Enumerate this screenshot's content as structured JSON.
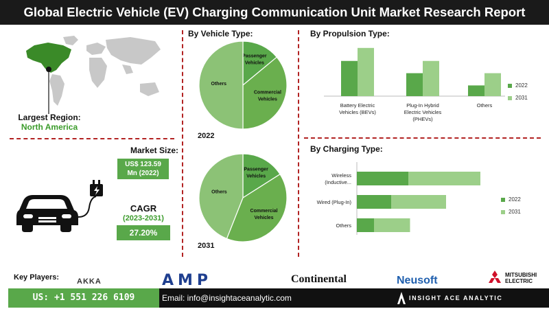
{
  "title": "Global Electric Vehicle (EV) Charging Communication Unit Market Research Report",
  "region": {
    "label": "Largest Region:",
    "value": "North America"
  },
  "market_size": {
    "label": "Market Size:",
    "value_line1": "US$ 123.59",
    "value_line2": "Mn (2022)"
  },
  "cagr": {
    "label": "CAGR",
    "period": "(2023-2031)",
    "value": "27.20%"
  },
  "key_players_label": "Key Players:",
  "players": [
    "AKKA",
    "AMP",
    "Continental",
    "Neusoft",
    "MITSUBISHI",
    "ELECTRIC"
  ],
  "footer": {
    "phone": "US: +1 551 226 6109",
    "email": "Email: info@insightaceanalytic.com",
    "brand": "INSIGHT ACE ANALYTIC"
  },
  "colors": {
    "dark_green": "#59a84a",
    "light_green": "#9ccf89",
    "pie_other": "#8cc276",
    "pie_passenger": "#59a84a",
    "pie_commercial": "#6aaf4e",
    "accent_text": "#3a9b2a",
    "title_bg": "#1a1a1a",
    "divider": "#b22222"
  },
  "icons": [
    "world-map-icon",
    "electric-car-icon",
    "charging-plug-icon",
    "location-pin-icon"
  ],
  "chart_data": [
    {
      "type": "pie",
      "section_title": "By  Vehicle Type:",
      "year": "2022",
      "slices": [
        {
          "label_lines": [
            "Passenger",
            "Vehicles"
          ],
          "value": 0.14
        },
        {
          "label_lines": [
            "Commercial",
            "Vehicles"
          ],
          "value": 0.36
        },
        {
          "label_lines": [
            "Others"
          ],
          "value": 0.5
        }
      ]
    },
    {
      "type": "pie",
      "year": "2031",
      "slices": [
        {
          "label_lines": [
            "Passenger",
            "Vehicles"
          ],
          "value": 0.16
        },
        {
          "label_lines": [
            "Commercial",
            "Vehicles"
          ],
          "value": 0.4
        },
        {
          "label_lines": [
            "Others"
          ],
          "value": 0.44
        }
      ]
    },
    {
      "type": "bar",
      "section_title": "By Propulsion Type:",
      "categories": [
        [
          "Battery Electric",
          "Vehicles (BEVs)"
        ],
        [
          "Plug-In Hybrid",
          "Electric Vehicles",
          "(PHEVs)"
        ],
        [
          "Others"
        ]
      ],
      "series": [
        {
          "name": "2022",
          "values": [
            46,
            30,
            14
          ]
        },
        {
          "name": "2031",
          "values": [
            63,
            46,
            30
          ]
        }
      ],
      "ylim": [
        0,
        70
      ]
    },
    {
      "type": "bar",
      "orientation": "horizontal",
      "section_title": "By Charging Type:",
      "categories": [
        [
          "Wireless",
          "(Inductive..."
        ],
        [
          "Wired (Plug-In)"
        ],
        [
          "Others"
        ]
      ],
      "series": [
        {
          "name": "2022",
          "values": [
            30,
            20,
            10
          ]
        },
        {
          "name": "2031",
          "values": [
            42,
            32,
            21
          ]
        }
      ],
      "stacked": true,
      "xlim": [
        0,
        80
      ]
    }
  ]
}
